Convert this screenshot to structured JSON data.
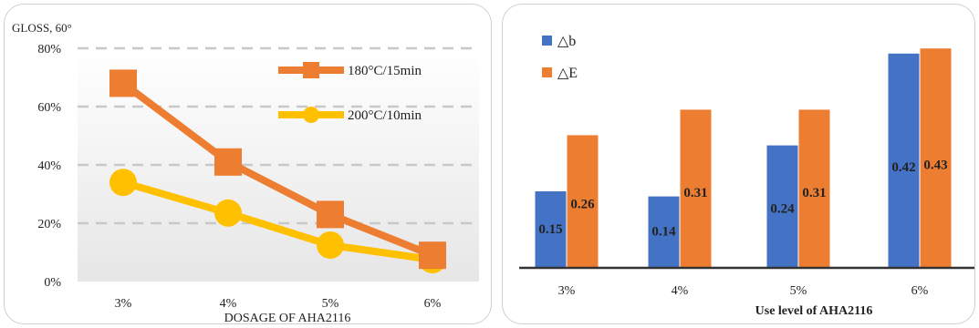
{
  "chart_data": [
    {
      "type": "line",
      "title": "",
      "ylabel": "GLOSS, 60°",
      "xlabel": "DOSAGE OF AHA2116",
      "categories": [
        "3%",
        "4%",
        "5%",
        "6%"
      ],
      "yticks": [
        "0%",
        "20%",
        "40%",
        "60%",
        "80%"
      ],
      "ylim": [
        0,
        80
      ],
      "grid": true,
      "legend": "top-right",
      "series": [
        {
          "name": "180°C/15min",
          "values": [
            68,
            41,
            23,
            9
          ],
          "color": "#ED7D31",
          "marker": "square"
        },
        {
          "name": "200°C/10min",
          "values": [
            34,
            23.5,
            12.5,
            7.5
          ],
          "color": "#FFC000",
          "marker": "circle"
        }
      ]
    },
    {
      "type": "bar",
      "title": "",
      "ylabel": "",
      "xlabel": "Use level of AHA2116",
      "categories": [
        "3%",
        "4%",
        "5%",
        "6%"
      ],
      "ylim": [
        0,
        0.5
      ],
      "grid": false,
      "legend": "top-left",
      "series": [
        {
          "name": "△b",
          "values": [
            0.15,
            0.14,
            0.24,
            0.42
          ],
          "labels": [
            "0.15",
            "0.14",
            "0.24",
            "0.42"
          ],
          "color": "#4472C4"
        },
        {
          "name": "△E",
          "values": [
            0.26,
            0.31,
            0.31,
            0.43
          ],
          "labels": [
            "0.26",
            "0.31",
            "0.31",
            "0.43"
          ],
          "color": "#ED7D31"
        }
      ]
    }
  ]
}
